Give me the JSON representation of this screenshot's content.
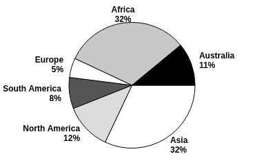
{
  "chart_data": {
    "type": "pie",
    "categories": [
      "Asia",
      "North America",
      "South America",
      "Europe",
      "Africa",
      "Australia"
    ],
    "values": [
      32,
      12,
      8,
      5,
      32,
      11
    ],
    "value_labels": [
      "32%",
      "12%",
      "8%",
      "5%",
      "32%",
      "11%"
    ],
    "colors": [
      "#ffffff",
      "#dcdcdc",
      "#555555",
      "#ffffff",
      "#c8c8c8",
      "#000000"
    ],
    "data_labels": true,
    "legend": false
  }
}
